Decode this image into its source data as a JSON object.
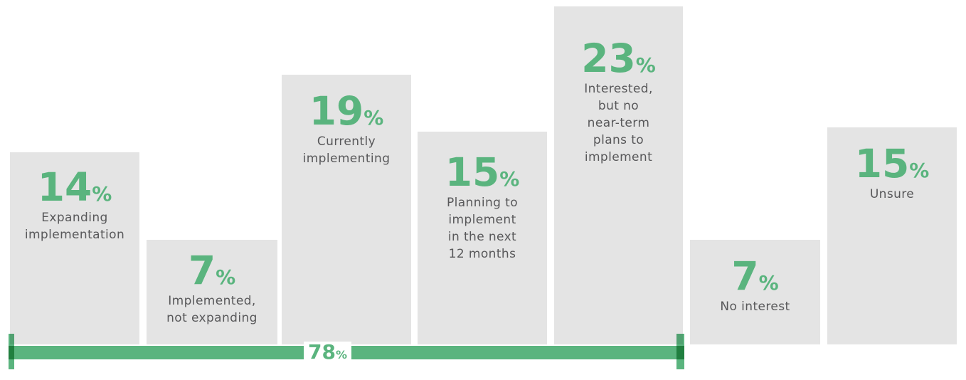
{
  "chart_data": {
    "type": "bar",
    "title": "",
    "categories": [
      "Expanding implementation",
      "Implemented, not expanding",
      "Currently implementing",
      "Planning to implement in the next 12 months",
      "Interested, but no near-term plans to implement",
      "No interest",
      "Unsure"
    ],
    "values": [
      14,
      7,
      19,
      15,
      23,
      7,
      15
    ],
    "unit": "%",
    "annotations": [
      {
        "label": "78%",
        "type": "bracket",
        "spans_category_indexes": [
          0,
          1,
          2,
          3,
          4
        ]
      }
    ],
    "bar_color": "#e4e4e4",
    "accent_color": "#5ab47e",
    "label_color": "#58585a",
    "axes": "none",
    "grid": false,
    "legend": "none"
  },
  "bars": [
    {
      "value": "14",
      "suffix": "%",
      "label_lines": [
        "Expanding",
        "implementation"
      ]
    },
    {
      "value": "7",
      "suffix": "%",
      "label_lines": [
        "Implemented,",
        "not expanding"
      ]
    },
    {
      "value": "19",
      "suffix": "%",
      "label_lines": [
        "Currently",
        "implementing"
      ]
    },
    {
      "value": "15",
      "suffix": "%",
      "label_lines": [
        "Planning to",
        "implement",
        "in the next",
        "12 months"
      ]
    },
    {
      "value": "23",
      "suffix": "%",
      "label_lines": [
        "Interested,",
        "but no",
        "near-term",
        "plans to",
        "implement"
      ]
    },
    {
      "value": "7",
      "suffix": "%",
      "label_lines": [
        "No interest"
      ]
    },
    {
      "value": "15",
      "suffix": "%",
      "label_lines": [
        "Unsure"
      ]
    }
  ],
  "bracket": {
    "value": "78",
    "suffix": "%"
  }
}
